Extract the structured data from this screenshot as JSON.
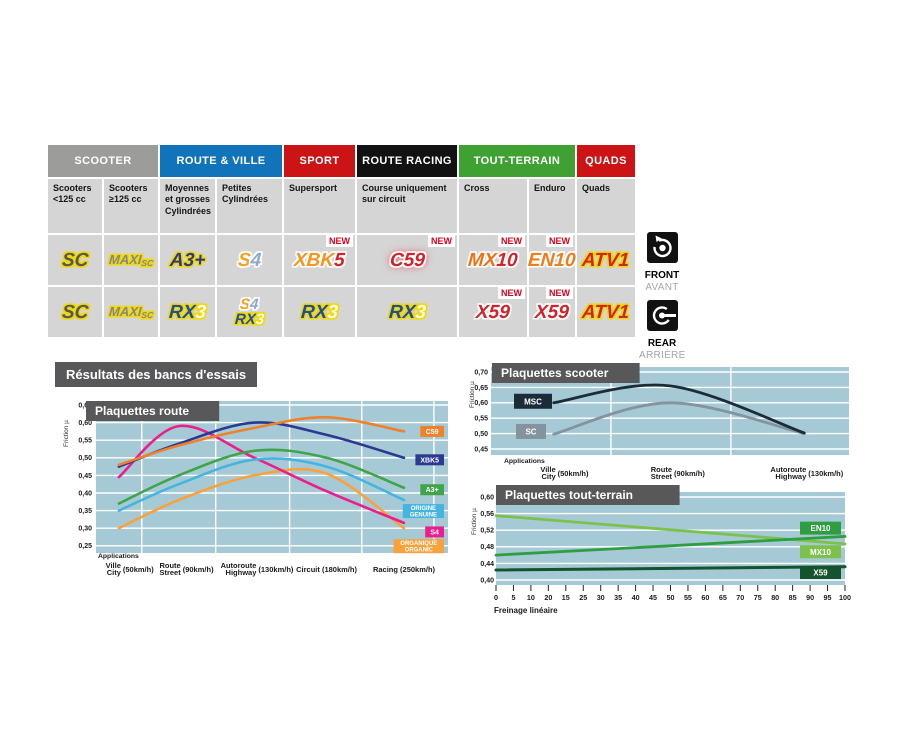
{
  "palette": {
    "cell_bg": "#d5d5d5",
    "chart_bg": "#a5cad6",
    "title_box_bg": "#58585a",
    "new_red": "#e2001a",
    "grid_white": "#ffffff"
  },
  "table": {
    "groups": [
      {
        "label": "SCOOTER",
        "color": "#9c9c9b",
        "span": 2
      },
      {
        "label": "ROUTE & VILLE",
        "color": "#1173b9",
        "span": 2
      },
      {
        "label": "SPORT",
        "color": "#cc1417",
        "span": 1
      },
      {
        "label": "ROUTE RACING",
        "color": "#121212",
        "span": 1
      },
      {
        "label": "TOUT-TERRAIN",
        "color": "#3ea131",
        "span": 2
      },
      {
        "label": "QUADS",
        "color": "#cc1417",
        "span": 1
      }
    ],
    "columns": [
      "Scooters <125 cc",
      "Scooters ≥125 cc",
      "Moyennes et grosses Cylindrées",
      "Petites Cylindrées",
      "Supersport",
      "Course uniquement sur circuit",
      "Cross",
      "Enduro",
      "Quads"
    ],
    "new_badge": "NEW",
    "rows": [
      {
        "cells": [
          {
            "logo": "SC"
          },
          {
            "logo": "MAXISC"
          },
          {
            "logo": "A3+"
          },
          {
            "logo": "S4"
          },
          {
            "logo": "XBK5",
            "new": true
          },
          {
            "logo": "C59",
            "new": true
          },
          {
            "logo": "MX10",
            "new": true
          },
          {
            "logo": "EN10",
            "new": true
          },
          {
            "logo": "ATV1"
          }
        ]
      },
      {
        "cells": [
          {
            "logo": "SC"
          },
          {
            "logo": "MAXISC"
          },
          {
            "logo": "RX3"
          },
          {
            "stack": [
              "S4",
              "RX3"
            ]
          },
          {
            "logo": "RX3"
          },
          {
            "logo": "RX3"
          },
          {
            "logo": "X59",
            "new": true
          },
          {
            "logo": "X59",
            "new": true
          },
          {
            "logo": "ATV1"
          }
        ]
      }
    ],
    "logo_styles": {
      "SC": {
        "parts": [
          {
            "t": "SC",
            "c": "#565759"
          }
        ],
        "outline": "#f0d90a"
      },
      "MAXISC": {
        "parts": [
          {
            "t": "MAXI",
            "c": "#85878a"
          },
          {
            "t": "SC",
            "c": "#85878a",
            "small": true
          }
        ],
        "outline": "#f0d90a",
        "size": 13
      },
      "A3+": {
        "parts": [
          {
            "t": "A3+",
            "c": "#2b3990"
          }
        ],
        "outline": "#f0d90a"
      },
      "S4": {
        "parts": [
          {
            "t": "S",
            "c": "#f7a01e"
          },
          {
            "t": "4",
            "c": "#8fa9cf"
          }
        ],
        "outline": "#ffffff"
      },
      "XBK5": {
        "parts": [
          {
            "t": "XBK",
            "c": "#f7941d"
          },
          {
            "t": "5",
            "c": "#d2232a"
          }
        ],
        "outline": "#ffffff"
      },
      "C59": {
        "parts": [
          {
            "t": "C59",
            "c": "#d2232a"
          }
        ],
        "outline": "#ffffff",
        "glow": "#ef3b47"
      },
      "MX10": {
        "parts": [
          {
            "t": "MX",
            "c": "#ee7114"
          },
          {
            "t": "10",
            "c": "#d2232a"
          }
        ],
        "outline": "#ffffff"
      },
      "EN10": {
        "parts": [
          {
            "t": "EN10",
            "c": "#ef7d1a"
          }
        ],
        "outline": "#ffffff"
      },
      "ATV1": {
        "parts": [
          {
            "t": "ATV1",
            "c": "#d2232a"
          }
        ],
        "outline": "#f0d90a"
      },
      "RX3": {
        "parts": [
          {
            "t": "RX",
            "c": "#1f4e9c"
          },
          {
            "t": "3",
            "c": "#fffbe8"
          }
        ],
        "outline": "#f0d90a"
      },
      "X59": {
        "parts": [
          {
            "t": "X59",
            "c": "#d2232a"
          }
        ],
        "outline": "#ffffff"
      }
    },
    "side": {
      "front": {
        "title": "FRONT",
        "subtitle": "AVANT",
        "icon": "front-brake-icon"
      },
      "rear": {
        "title": "REAR",
        "subtitle": "ARRIÈRE",
        "icon": "rear-brake-icon"
      }
    }
  },
  "section_title": "Résultats des bancs d'essais",
  "chart_data": [
    {
      "id": "route",
      "type": "line",
      "title": "Plaquettes route",
      "ylabel": "Friction µ",
      "applications_label": "Applications",
      "ytick_labels": [
        "0,65",
        "0,60",
        "0,55",
        "0,50",
        "0,45",
        "0,40",
        "0,35",
        "0,30",
        "0,25"
      ],
      "ylim": [
        0.25,
        0.65
      ],
      "categories": [
        {
          "fr": "Ville",
          "en": "City",
          "speed": "(50km/h)"
        },
        {
          "fr": "Route",
          "en": "Street",
          "speed": "(90km/h)"
        },
        {
          "fr": "Autoroute",
          "en": "Highway",
          "speed": "(130km/h)"
        },
        {
          "fr": "Circuit",
          "en": "",
          "speed": "(180km/h)"
        },
        {
          "fr": "Racing",
          "en": "",
          "speed": "(250km/h)"
        }
      ],
      "series": [
        {
          "name": "C59",
          "color": "#f0802a",
          "label": [
            "C59"
          ],
          "values": [
            0.48,
            0.535,
            0.585,
            0.615,
            0.575
          ]
        },
        {
          "name": "XBK5",
          "color": "#2b3990",
          "label": [
            "XBK5"
          ],
          "values": [
            0.475,
            0.54,
            0.6,
            0.565,
            0.5
          ]
        },
        {
          "name": "A3+",
          "color": "#3fa548",
          "label": [
            "A3+"
          ],
          "values": [
            0.37,
            0.45,
            0.52,
            0.5,
            0.415
          ]
        },
        {
          "name": "ORIGINE GENUINE",
          "color": "#45b5e0",
          "label": [
            "ORIGINE",
            "GENUINE"
          ],
          "values": [
            0.35,
            0.425,
            0.495,
            0.475,
            0.38
          ]
        },
        {
          "name": "S4",
          "color": "#ec1e8c",
          "label": [
            "S4"
          ],
          "values": [
            0.445,
            0.59,
            0.5,
            0.405,
            0.315
          ]
        },
        {
          "name": "ORGANIQUE ORGANIC",
          "color": "#f9a13a",
          "label": [
            "ORGANIQUE",
            "ORGANIC"
          ],
          "values": [
            0.3,
            0.38,
            0.45,
            0.455,
            0.3
          ]
        }
      ]
    },
    {
      "id": "scooter",
      "type": "line",
      "title": "Plaquettes scooter",
      "ylabel": "Friction µ",
      "applications_label": "Applications",
      "ytick_labels": [
        "0,70",
        "0,65",
        "0,60",
        "0,55",
        "0,50",
        "0,45"
      ],
      "ylim": [
        0.45,
        0.7
      ],
      "categories": [
        {
          "fr": "Ville",
          "en": "City",
          "speed": "(50km/h)"
        },
        {
          "fr": "Route",
          "en": "Street",
          "speed": "(90km/h)"
        },
        {
          "fr": "Autoroute",
          "en": "Highway",
          "speed": "(130km/h)"
        }
      ],
      "series": [
        {
          "name": "MSC",
          "color": "#1c2b38",
          "label": [
            "MSC"
          ],
          "values": [
            0.6,
            0.655,
            0.502
          ]
        },
        {
          "name": "SC",
          "color": "#84939e",
          "label": [
            "SC"
          ],
          "values": [
            0.498,
            0.6,
            0.5
          ]
        }
      ]
    },
    {
      "id": "tout-terrain",
      "type": "line",
      "title": "Plaquettes tout-terrain",
      "ylabel": "Friction µ",
      "xlabel": "Freinage linéaire",
      "ytick_labels": [
        "0,60",
        "0,56",
        "0,52",
        "0,48",
        "0,44",
        "0,40"
      ],
      "ylim": [
        0.4,
        0.6
      ],
      "xlim": [
        0,
        100
      ],
      "xtick_labels": [
        "0",
        "5",
        "10",
        "20",
        "15",
        "25",
        "30",
        "35",
        "40",
        "45",
        "50",
        "55",
        "60",
        "65",
        "70",
        "75",
        "80",
        "85",
        "90",
        "95",
        "100"
      ],
      "series": [
        {
          "name": "MX10",
          "color": "#7cc24a",
          "label": [
            "MX10"
          ],
          "points": [
            [
              0,
              0.555
            ],
            [
              100,
              0.487
            ]
          ]
        },
        {
          "name": "EN10",
          "color": "#2f9e41",
          "label": [
            "EN10"
          ],
          "points": [
            [
              0,
              0.46
            ],
            [
              100,
              0.505
            ]
          ]
        },
        {
          "name": "X59",
          "color": "#14532d",
          "label": [
            "X59"
          ],
          "points": [
            [
              0,
              0.424
            ],
            [
              100,
              0.432
            ]
          ]
        }
      ]
    }
  ]
}
